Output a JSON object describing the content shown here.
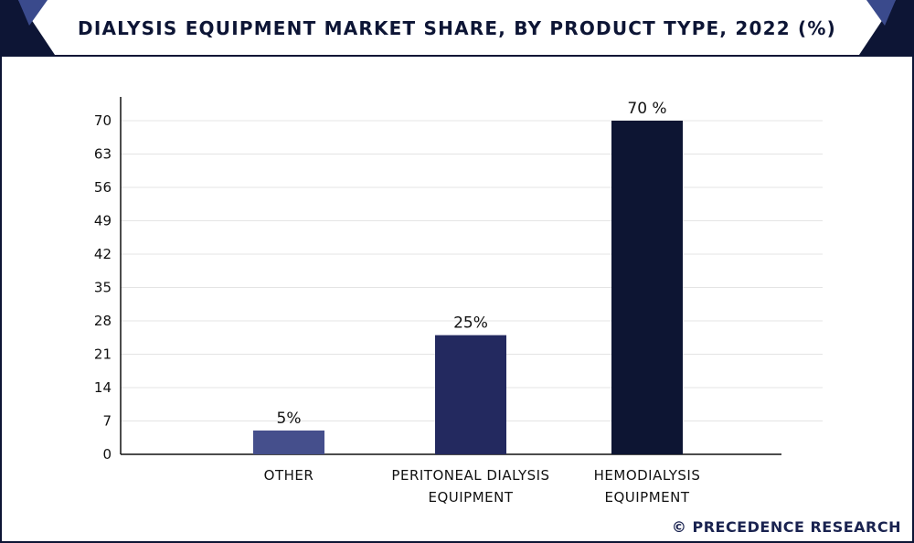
{
  "title": "DIALYSIS EQUIPMENT MARKET SHARE, BY PRODUCT TYPE, 2022 (%)",
  "credit": "© PRECEDENCE RESEARCH",
  "colors": {
    "frame": "#0d1535",
    "header_accent": "#3a4a8c",
    "bars": [
      "#454f8c",
      "#23295f",
      "#0d1533"
    ],
    "gridline": "#e4e4e4",
    "axis": "#111111"
  },
  "chart_data": {
    "type": "bar",
    "title": "DIALYSIS EQUIPMENT MARKET SHARE, BY PRODUCT TYPE, 2022 (%)",
    "categories": [
      [
        "OTHER"
      ],
      [
        "PERITONEAL DIALYSIS",
        "EQUIPMENT"
      ],
      [
        "HEMODIALYSIS",
        "EQUIPMENT"
      ]
    ],
    "values": [
      5,
      25,
      70
    ],
    "data_labels": [
      "5%",
      "25%",
      "70 %"
    ],
    "xlabel": "",
    "ylabel": "",
    "ylim": [
      0,
      70
    ],
    "yticks": [
      "0",
      "7",
      "14",
      "21",
      "28",
      "35",
      "42",
      "49",
      "56",
      "63",
      "70"
    ],
    "grid": true,
    "legend": "none"
  }
}
